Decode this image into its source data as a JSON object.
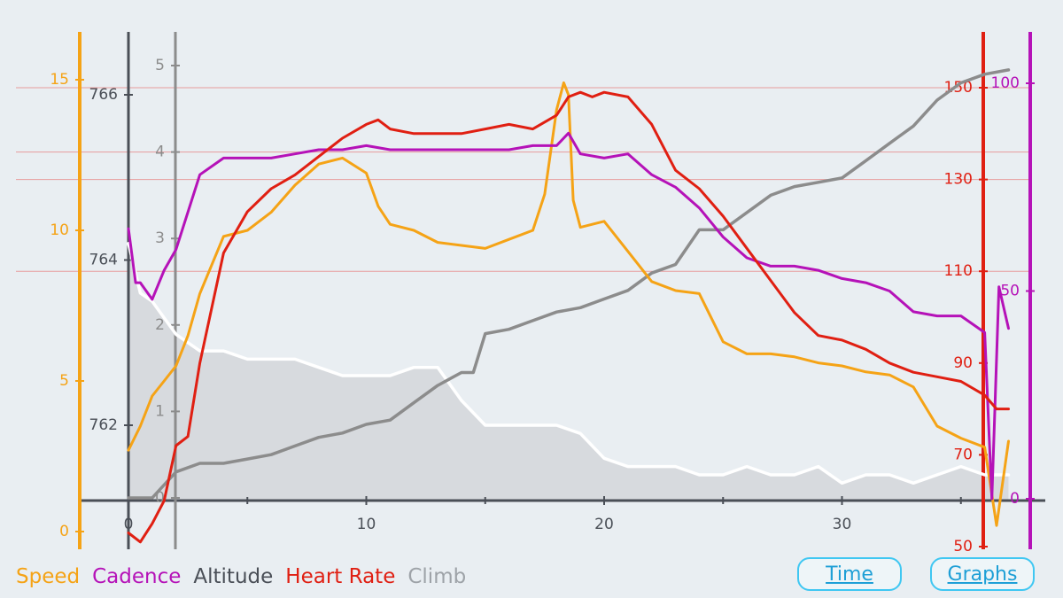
{
  "colors": {
    "speed": "#f5a316",
    "cadence": "#b512b8",
    "altitude": "#8c8c8c",
    "heart_rate": "#e01f12",
    "climb": "#ffffff",
    "climb_fill": "#d3d6db",
    "axis": "#4a4f57",
    "grid": "#e89c9c"
  },
  "legend": [
    {
      "key": "speed",
      "label": "Speed",
      "color": "#f5a316"
    },
    {
      "key": "cadence",
      "label": "Cadence",
      "color": "#b512b8"
    },
    {
      "key": "altitude",
      "label": "Altitude",
      "color": "#4a4f57"
    },
    {
      "key": "heart_rate",
      "label": "Heart Rate",
      "color": "#e01f12"
    },
    {
      "key": "climb",
      "label": "Climb",
      "color": "#9ea3a8"
    }
  ],
  "buttons": {
    "time": "Time",
    "graphs": "Graphs"
  },
  "chart_data": {
    "type": "line",
    "x_axis": {
      "ticks": [
        0,
        10,
        20,
        30
      ],
      "tick_labels": [
        "0",
        "10",
        "20",
        "30"
      ]
    },
    "axes": {
      "speed": {
        "color": "#f5a316",
        "range": [
          0,
          15
        ],
        "ticks": [
          0,
          5,
          10,
          15
        ],
        "tick_labels": [
          "0",
          "5",
          "10",
          "15"
        ]
      },
      "altitude_m": {
        "color": "#4a4f57",
        "range": [
          760.8,
          766.8
        ],
        "ticks": [
          762,
          764,
          766
        ],
        "tick_labels": [
          "762",
          "764",
          "766"
        ]
      },
      "climb": {
        "color": "#8c8c8c",
        "range": [
          0,
          5
        ],
        "ticks": [
          0,
          1,
          2,
          3,
          4,
          5
        ],
        "tick_labels": [
          "0",
          "1",
          "2",
          "3",
          "4",
          "5"
        ]
      },
      "heart_rate": {
        "color": "#e01f12",
        "range": [
          50,
          160
        ],
        "ticks": [
          50,
          70,
          90,
          110,
          130,
          150
        ],
        "tick_labels": [
          "50",
          "70",
          "90",
          "110",
          "130",
          "150"
        ]
      },
      "cadence": {
        "color": "#b512b8",
        "range": [
          0,
          110
        ],
        "ticks": [
          0,
          50,
          100
        ],
        "tick_labels": [
          "0",
          "50",
          "100"
        ]
      }
    },
    "gridlines_heart_rate": [
      110,
      130,
      150
    ],
    "series": [
      {
        "name": "Speed",
        "axis": "speed",
        "x": [
          0,
          0.5,
          1,
          1.5,
          2,
          2.5,
          3,
          4,
          5,
          6,
          7,
          8,
          9,
          10,
          10.5,
          11,
          12,
          13,
          14,
          15,
          16,
          17,
          17.5,
          18,
          18.3,
          18.5,
          18.7,
          19,
          19.5,
          20,
          21,
          22,
          23,
          24,
          25,
          26,
          27,
          28,
          29,
          30,
          31,
          32,
          33,
          34,
          35,
          36,
          36.5,
          37
        ],
        "y": [
          2.7,
          3.5,
          4.5,
          5.0,
          5.5,
          6.5,
          7.9,
          9.8,
          10.0,
          10.6,
          11.5,
          12.2,
          12.4,
          11.9,
          10.8,
          10.2,
          10.0,
          9.6,
          9.5,
          9.4,
          9.7,
          10.0,
          11.2,
          14.0,
          14.9,
          14.5,
          11.0,
          10.1,
          10.2,
          10.3,
          9.3,
          8.3,
          8.0,
          7.9,
          6.3,
          5.9,
          5.9,
          5.8,
          5.6,
          5.5,
          5.3,
          5.2,
          4.8,
          3.5,
          3.1,
          2.8,
          0.2,
          3.0
        ]
      },
      {
        "name": "Cadence",
        "axis": "cadence",
        "x": [
          0,
          0.3,
          0.5,
          1,
          1.5,
          2,
          3,
          4,
          5,
          6,
          7,
          8,
          9,
          10,
          11,
          12,
          13,
          14,
          15,
          16,
          17,
          18,
          18.5,
          19,
          20,
          21,
          22,
          23,
          24,
          25,
          26,
          27,
          28,
          29,
          30,
          31,
          32,
          33,
          34,
          35,
          35.5,
          36,
          36.3,
          36.6,
          37
        ],
        "y": [
          65,
          52,
          52,
          48,
          55,
          60,
          78,
          82,
          82,
          82,
          83,
          84,
          84,
          85,
          84,
          84,
          84,
          84,
          84,
          84,
          85,
          85,
          88,
          83,
          82,
          83,
          78,
          75,
          70,
          63,
          58,
          56,
          56,
          55,
          53,
          52,
          50,
          45,
          44,
          44,
          42,
          40,
          0,
          51,
          41
        ]
      },
      {
        "name": "Heart Rate",
        "axis": "heart_rate",
        "x": [
          0,
          0.5,
          1,
          1.5,
          2,
          2.5,
          3,
          4,
          5,
          6,
          7,
          8,
          9,
          10,
          10.5,
          11,
          12,
          13,
          14,
          15,
          16,
          17,
          18,
          18.5,
          19,
          19.5,
          20,
          21,
          22,
          23,
          24,
          25,
          26,
          27,
          28,
          29,
          30,
          31,
          32,
          33,
          34,
          35,
          36,
          36.5,
          37
        ],
        "y": [
          53,
          51,
          55,
          60,
          72,
          74,
          90,
          114,
          123,
          128,
          131,
          135,
          139,
          142,
          143,
          141,
          140,
          140,
          140,
          141,
          142,
          141,
          144,
          148,
          149,
          148,
          149,
          148,
          142,
          132,
          128,
          122,
          115,
          108,
          101,
          96,
          95,
          93,
          90,
          88,
          87,
          86,
          83,
          80,
          80
        ]
      },
      {
        "name": "Altitude",
        "axis": "altitude_m",
        "x": [
          0,
          0.5,
          1,
          2,
          3,
          4,
          5,
          6,
          7,
          8,
          9,
          10,
          11,
          12,
          13,
          14,
          15,
          16,
          17,
          18,
          19,
          20,
          21,
          22,
          23,
          24,
          25,
          26,
          27,
          28,
          29,
          30,
          31,
          32,
          33,
          34,
          35,
          36,
          37
        ],
        "y": [
          764.2,
          763.6,
          763.5,
          763.1,
          762.9,
          762.9,
          762.8,
          762.8,
          762.8,
          762.7,
          762.6,
          762.6,
          762.6,
          762.7,
          762.7,
          762.3,
          762.0,
          762.0,
          762.0,
          762.0,
          761.9,
          761.6,
          761.5,
          761.5,
          761.5,
          761.4,
          761.4,
          761.5,
          761.4,
          761.4,
          761.5,
          761.3,
          761.4,
          761.4,
          761.3,
          761.4,
          761.5,
          761.4,
          761.4
        ]
      },
      {
        "name": "Climb",
        "axis": "climb",
        "x": [
          0,
          1,
          2,
          3,
          4,
          5,
          6,
          7,
          8,
          9,
          10,
          11,
          12,
          13,
          14,
          14.5,
          15,
          16,
          17,
          18,
          19,
          20,
          21,
          22,
          23,
          24,
          25,
          26,
          27,
          28,
          29,
          30,
          31,
          32,
          33,
          34,
          35,
          36,
          37
        ],
        "y": [
          0,
          0,
          0.3,
          0.4,
          0.4,
          0.45,
          0.5,
          0.6,
          0.7,
          0.75,
          0.85,
          0.9,
          1.1,
          1.3,
          1.45,
          1.45,
          1.9,
          1.95,
          2.05,
          2.15,
          2.2,
          2.3,
          2.4,
          2.6,
          2.7,
          3.1,
          3.1,
          3.3,
          3.5,
          3.6,
          3.65,
          3.7,
          3.9,
          4.1,
          4.3,
          4.6,
          4.8,
          4.9,
          4.95
        ]
      }
    ]
  }
}
